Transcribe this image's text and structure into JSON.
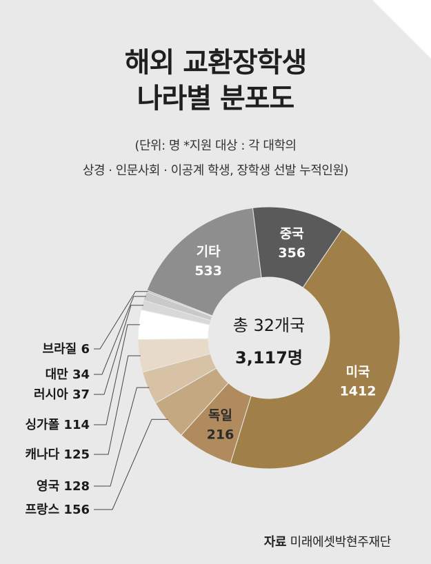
{
  "title_line1": "해외 교환장학생",
  "title_line2": "나라별 분포도",
  "subtitle_line1": "(단위: 명 *지원 대상 : 각 대학의",
  "subtitle_line2": "상경 · 인문사회 · 이공계 학생, 장학생 선발 누적인원)",
  "center_line1": "총 32개국",
  "center_line2": "3,117명",
  "source_label": "자료",
  "source_name": "미래에셋박현주재단",
  "chart_data": {
    "type": "pie",
    "donut": true,
    "total": 3117,
    "countries": 32,
    "slices": [
      {
        "label": "미국",
        "value": 1412,
        "color": "#a07f48",
        "label_position": "inside",
        "text_color": "#ffffff"
      },
      {
        "label": "독일",
        "value": 216,
        "color": "#b08b5e",
        "label_position": "inside",
        "text_color": "#2a2a2a"
      },
      {
        "label": "프랑스",
        "value": 156,
        "color": "#c4a882",
        "label_position": "outside"
      },
      {
        "label": "영국",
        "value": 128,
        "color": "#d7c2a6",
        "label_position": "outside"
      },
      {
        "label": "캐나다",
        "value": 125,
        "color": "#e7dac8",
        "label_position": "outside"
      },
      {
        "label": "싱가폴",
        "value": 114,
        "color": "#ffffff",
        "label_position": "outside"
      },
      {
        "label": "러시아",
        "value": 37,
        "color": "#d8d8d8",
        "label_position": "outside"
      },
      {
        "label": "대만",
        "value": 34,
        "color": "#c9c9c9",
        "label_position": "outside"
      },
      {
        "label": "브라질",
        "value": 6,
        "color": "#b8b8b8",
        "label_position": "outside"
      },
      {
        "label": "기타",
        "value": 533,
        "color": "#8e8e8e",
        "label_position": "inside",
        "text_color": "#ffffff"
      },
      {
        "label": "중국",
        "value": 356,
        "color": "#5a5a5a",
        "label_position": "inside",
        "text_color": "#ffffff"
      }
    ]
  }
}
